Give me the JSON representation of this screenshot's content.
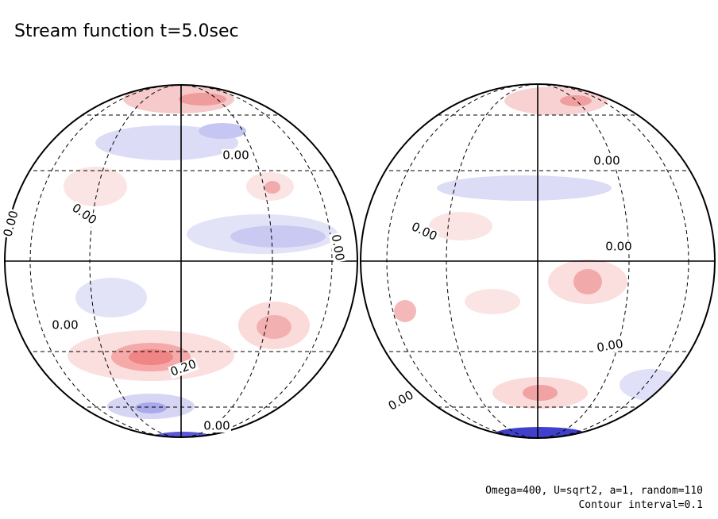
{
  "title": "Stream function t=5.0sec",
  "contour_labels": [
    "0.00",
    "0.00",
    "0.00",
    "0.00",
    "0.00",
    "0.00",
    "0.20",
    "0.00",
    "0.00",
    "0.00",
    "0.00",
    "0.00"
  ],
  "footer": {
    "parameters": "Omega=400, U=sqrt2, a=1, random=110",
    "interval": "Contour interval=0.1"
  }
}
